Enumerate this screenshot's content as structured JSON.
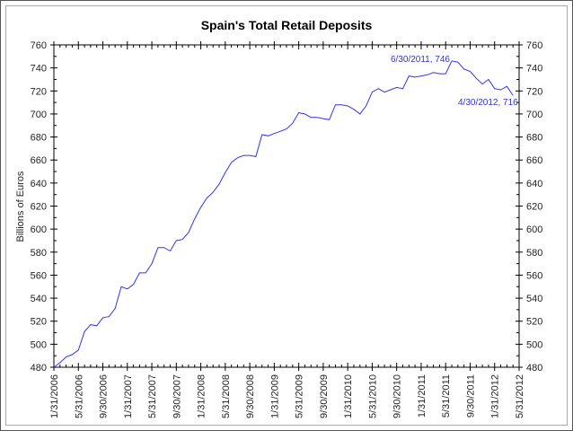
{
  "chart_data": {
    "type": "line",
    "title": "Spain's Total Retail Deposits",
    "xlabel": "",
    "ylabel": "Billions of Euros",
    "ylim": [
      480,
      760
    ],
    "yticks": [
      480,
      500,
      520,
      540,
      560,
      580,
      600,
      620,
      640,
      660,
      680,
      700,
      720,
      740,
      760
    ],
    "xtick_labels": [
      "1/31/2006",
      "5/31/2006",
      "9/30/2006",
      "1/31/2007",
      "5/31/2007",
      "9/30/2007",
      "1/31/2008",
      "5/31/2008",
      "9/30/2008",
      "1/31/2009",
      "5/31/2009",
      "9/30/2009",
      "1/31/2010",
      "5/31/2010",
      "9/30/2010",
      "1/31/2011",
      "5/31/2011",
      "9/30/2011",
      "1/31/2012",
      "5/31/2012"
    ],
    "x_start": "1/31/2006",
    "x_frequency": "monthly",
    "series": [
      {
        "name": "Total Retail Deposits",
        "color": "#3333ee",
        "values": [
          480,
          484,
          489,
          491,
          495,
          511,
          517,
          516,
          523,
          524,
          531,
          550,
          548,
          552,
          562,
          562,
          570,
          584,
          584,
          581,
          590,
          591,
          597,
          609,
          619,
          627,
          632,
          639,
          649,
          658,
          662,
          664,
          664,
          663,
          682,
          681,
          683,
          685,
          687,
          692,
          701,
          700,
          697,
          697,
          696,
          695,
          708,
          708,
          707,
          704,
          700,
          707,
          719,
          722,
          719,
          721,
          723,
          722,
          733,
          732,
          733,
          734,
          736,
          735,
          735,
          746,
          745,
          739,
          737,
          731,
          726,
          730,
          722,
          721,
          724,
          716
        ]
      }
    ],
    "annotations": [
      {
        "text": "6/30/2011, 746",
        "x": "6/30/2011",
        "y": 746
      },
      {
        "text": "4/30/2012, 716",
        "x": "4/30/2012",
        "y": 716
      }
    ],
    "grid": false,
    "legend": "none"
  }
}
